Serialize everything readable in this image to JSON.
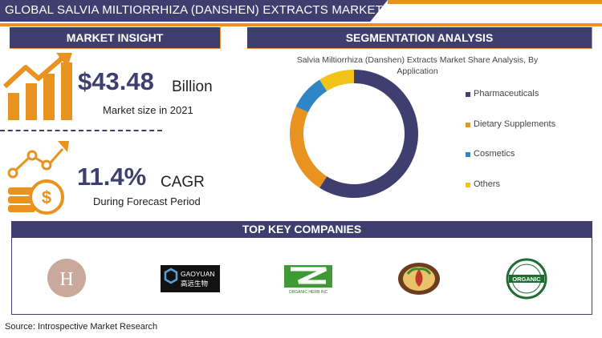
{
  "header": {
    "title": "GLOBAL SALVIA MILTIORRHIZA (DANSHEN) EXTRACTS MARKET"
  },
  "market_insight": {
    "heading": "MARKET INSIGHT",
    "market_value": "$43.48",
    "market_unit": "Billion",
    "market_caption": "Market size in 2021",
    "cagr_value": "11.4%",
    "cagr_unit": "CAGR",
    "cagr_caption": "During Forecast Period"
  },
  "segmentation": {
    "heading": "SEGMENTATION ANALYSIS"
  },
  "companies": {
    "heading": "TOP KEY COMPANIES",
    "logos": [
      {
        "name": "H",
        "icon": "h-monogram-logo"
      },
      {
        "name": "GAOYUAN",
        "sub": "高远生物",
        "icon": "gaoyuan-logo"
      },
      {
        "name": "ORGANIC HERB INC",
        "icon": "organic-herb-logo"
      },
      {
        "name": "",
        "icon": "herbal-emblem-logo"
      },
      {
        "name": "ORGANIC",
        "icon": "organic-seal-logo"
      }
    ]
  },
  "source": "Source: Introspective Market Research",
  "colors": {
    "navy": "#3e3f6f",
    "orange": "#e8921f",
    "blue": "#2e86c7",
    "yellow": "#f2c418"
  },
  "chart_data": {
    "type": "pie",
    "title": "Salvia Miltiorrhiza (Danshen) Extracts Market Share Analysis, By Application",
    "donut": true,
    "legend_position": "right",
    "categories": [
      "Pharmaceuticals",
      "Dietary Supplements",
      "Cosmetics",
      "Others"
    ],
    "values": [
      59,
      23,
      9,
      9
    ],
    "colors": [
      "#3e3f6f",
      "#e8921f",
      "#2e86c7",
      "#f2c418"
    ]
  }
}
